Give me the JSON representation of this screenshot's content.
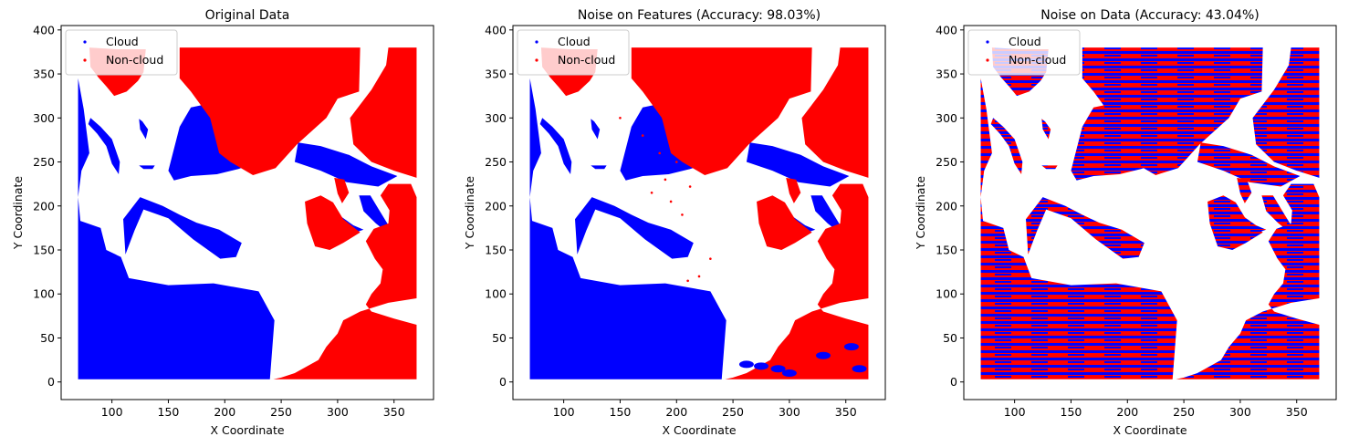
{
  "colors": {
    "cloud": "#0000ff",
    "non_cloud": "#ff0000",
    "background": "#ffffff",
    "axes": "#000000"
  },
  "legend": {
    "placement": "upper-left",
    "entries": [
      "Cloud",
      "Non-cloud"
    ]
  },
  "chart_data": [
    {
      "type": "scatter",
      "title": "Original Data",
      "xlabel": "X Coordinate",
      "ylabel": "Y Coordinate",
      "xlim": [
        55,
        385
      ],
      "ylim": [
        -20,
        405
      ],
      "xticks": [
        100,
        150,
        200,
        250,
        300,
        350
      ],
      "yticks": [
        0,
        50,
        100,
        150,
        200,
        250,
        300,
        350,
        400
      ],
      "grid": false,
      "series": [
        {
          "name": "Cloud",
          "color": "#0000ff",
          "regions": [
            {
              "polygon": [
                [
                  70,
                  3
                ],
                [
                  240,
                  3
                ],
                [
                  244,
                  70
                ],
                [
                  230,
                  103
                ],
                [
                  190,
                  112
                ],
                [
                  150,
                  110
                ],
                [
                  115,
                  118
                ],
                [
                  108,
                  142
                ],
                [
                  95,
                  150
                ],
                [
                  90,
                  175
                ],
                [
                  72,
                  183
                ],
                [
                  70,
                  210
                ],
                [
                  73,
                  240
                ],
                [
                  80,
                  260
                ],
                [
                  75,
                  310
                ],
                [
                  70,
                  345
                ]
              ]
            },
            {
              "polygon": [
                [
                  112,
                  145
                ],
                [
                  120,
                  172
                ],
                [
                  128,
                  196
                ],
                [
                  150,
                  186
                ],
                [
                  172,
                  162
                ],
                [
                  196,
                  140
                ],
                [
                  210,
                  142
                ],
                [
                  215,
                  158
                ],
                [
                  195,
                  173
                ],
                [
                  175,
                  181
                ],
                [
                  160,
                  190
                ],
                [
                  145,
                  200
                ],
                [
                  125,
                  210
                ],
                [
                  110,
                  185
                ]
              ]
            },
            {
              "polygon": [
                [
                  150,
                  240
                ],
                [
                  160,
                  290
                ],
                [
                  170,
                  312
                ],
                [
                  200,
                  320
                ],
                [
                  220,
                  303
                ],
                [
                  236,
                  278
                ],
                [
                  231,
                  250
                ],
                [
                  212,
                  242
                ],
                [
                  193,
                  236
                ],
                [
                  170,
                  234
                ],
                [
                  155,
                  229
                ]
              ]
            },
            {
              "polygon": [
                [
                  81,
                  300
                ],
                [
                  90,
                  290
                ],
                [
                  100,
                  276
                ],
                [
                  107,
                  250
                ],
                [
                  106,
                  236
                ],
                [
                  100,
                  248
                ],
                [
                  95,
                  268
                ],
                [
                  87,
                  282
                ],
                [
                  79,
                  293
                ]
              ]
            },
            {
              "polygon": [
                [
                  265,
                  272
                ],
                [
                  285,
                  268
                ],
                [
                  310,
                  258
                ],
                [
                  330,
                  245
                ],
                [
                  353,
                  234
                ],
                [
                  336,
                  222
                ],
                [
                  308,
                  227
                ],
                [
                  285,
                  240
                ],
                [
                  262,
                  250
                ]
              ]
            },
            {
              "polygon": [
                [
                  296,
                  200
                ],
                [
                  303,
                  188
                ],
                [
                  314,
                  178
                ],
                [
                  323,
                  173
                ],
                [
                  316,
                  170
                ],
                [
                  302,
                  181
                ],
                [
                  292,
                  193
                ]
              ]
            },
            {
              "polygon": [
                [
                  319,
                  212
                ],
                [
                  329,
                  212
                ],
                [
                  336,
                  197
                ],
                [
                  346,
                  176
                ],
                [
                  344,
                  170
                ],
                [
                  334,
                  180
                ],
                [
                  323,
                  194
                ]
              ]
            },
            {
              "polygon": [
                [
                  124,
                  299
                ],
                [
                  127,
                  296
                ],
                [
                  132,
                  287
                ],
                [
                  130,
                  276
                ],
                [
                  125,
                  287
                ]
              ]
            },
            {
              "polygon": [
                [
                  124,
                  246
                ],
                [
                  128,
                  242
                ],
                [
                  136,
                  242
                ],
                [
                  138,
                  246
                ]
              ]
            }
          ]
        },
        {
          "name": "Non-cloud",
          "color": "#ff0000",
          "regions": [
            {
              "polygon": [
                [
                  80,
                  380
                ],
                [
                  105,
                  378
                ],
                [
                  130,
                  378
                ],
                [
                  128,
                  352
                ],
                [
                  123,
                  342
                ],
                [
                  113,
                  330
                ],
                [
                  102,
                  325
                ],
                [
                  95,
                  336
                ],
                [
                  88,
                  346
                ],
                [
                  81,
                  358
                ]
              ]
            },
            {
              "polygon": [
                [
                  160,
                  380
                ],
                [
                  320,
                  380
                ],
                [
                  319,
                  330
                ],
                [
                  300,
                  322
                ],
                [
                  290,
                  300
                ],
                [
                  264,
                  270
                ],
                [
                  245,
                  243
                ],
                [
                  225,
                  235
                ],
                [
                  205,
                  250
                ],
                [
                  195,
                  260
                ],
                [
                  187,
                  300
                ],
                [
                  170,
                  330
                ],
                [
                  160,
                  345
                ]
              ]
            },
            {
              "polygon": [
                [
                  345,
                  380
                ],
                [
                  370,
                  380
                ],
                [
                  370,
                  232
                ],
                [
                  350,
                  240
                ],
                [
                  330,
                  250
                ],
                [
                  314,
                  270
                ],
                [
                  311,
                  300
                ],
                [
                  330,
                  332
                ],
                [
                  343,
                  360
                ]
              ]
            },
            {
              "polygon": [
                [
                  297,
                  232
                ],
                [
                  306,
                  230
                ],
                [
                  310,
                  215
                ],
                [
                  304,
                  203
                ],
                [
                  300,
                  214
                ]
              ]
            },
            {
              "polygon": [
                [
                  271,
                  205
                ],
                [
                  285,
                  212
                ],
                [
                  296,
                  204
                ],
                [
                  305,
                  185
                ],
                [
                  320,
                  170
                ],
                [
                  305,
                  158
                ],
                [
                  293,
                  150
                ],
                [
                  280,
                  154
                ],
                [
                  273,
                  180
                ]
              ]
            },
            {
              "polygon": [
                [
                  345,
                  225
                ],
                [
                  365,
                  225
                ],
                [
                  370,
                  210
                ],
                [
                  370,
                  95
                ],
                [
                  345,
                  90
                ],
                [
                  320,
                  80
                ],
                [
                  305,
                  70
                ],
                [
                  300,
                  55
                ],
                [
                  290,
                  40
                ],
                [
                  283,
                  25
                ],
                [
                  262,
                  10
                ],
                [
                  250,
                  5
                ],
                [
                  243,
                  3
                ],
                [
                  370,
                  3
                ],
                [
                  370,
                  65
                ],
                [
                  350,
                  72
                ],
                [
                  330,
                  80
                ],
                [
                  325,
                  88
                ],
                [
                  330,
                  100
                ],
                [
                  338,
                  112
                ],
                [
                  340,
                  128
                ],
                [
                  333,
                  140
                ],
                [
                  325,
                  160
                ],
                [
                  332,
                  174
                ],
                [
                  345,
                  180
                ],
                [
                  346,
                  195
                ],
                [
                  338,
                  212
                ]
              ]
            }
          ]
        }
      ]
    },
    {
      "type": "scatter",
      "title": "Noise on Features (Accuracy: 98.03%)",
      "xlabel": "X Coordinate",
      "ylabel": "Y Coordinate",
      "xlim": [
        55,
        385
      ],
      "ylim": [
        -20,
        405
      ],
      "xticks": [
        100,
        150,
        200,
        250,
        300,
        350
      ],
      "yticks": [
        0,
        50,
        100,
        150,
        200,
        250,
        300,
        350,
        400
      ],
      "grid": false,
      "accuracy_percent": 98.03,
      "series": [
        {
          "name": "Cloud",
          "color": "#0000ff"
        },
        {
          "name": "Non-cloud",
          "color": "#ff0000"
        }
      ]
    },
    {
      "type": "scatter",
      "title": "Noise on Data (Accuracy: 43.04%)",
      "xlabel": "X Coordinate",
      "ylabel": "Y Coordinate",
      "xlim": [
        55,
        385
      ],
      "ylim": [
        -20,
        405
      ],
      "xticks": [
        100,
        150,
        200,
        250,
        300,
        350
      ],
      "yticks": [
        0,
        50,
        100,
        150,
        200,
        250,
        300,
        350,
        400
      ],
      "grid": false,
      "accuracy_percent": 43.04,
      "series": [
        {
          "name": "Cloud",
          "color": "#0000ff"
        },
        {
          "name": "Non-cloud",
          "color": "#ff0000"
        }
      ]
    }
  ]
}
